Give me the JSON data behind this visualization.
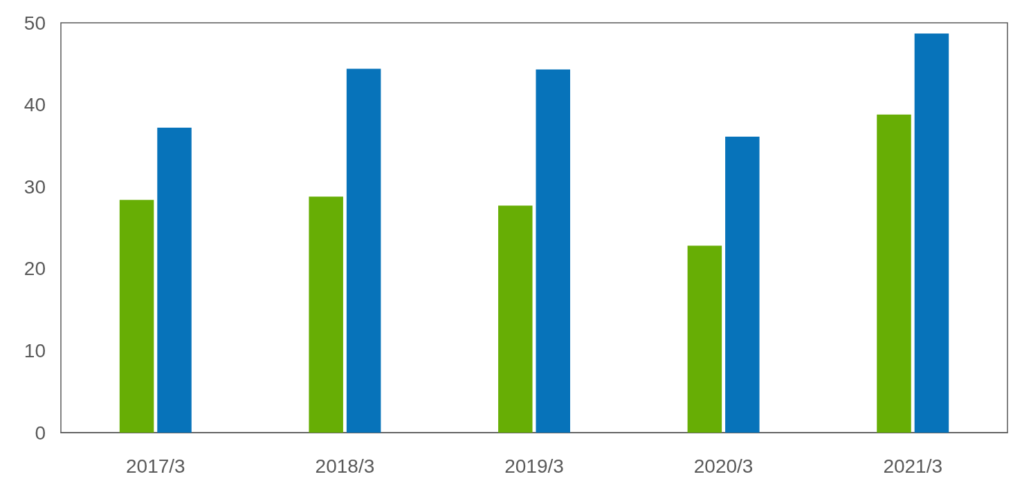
{
  "chart_data": {
    "type": "bar",
    "categories": [
      "2017/3",
      "2018/3",
      "2019/3",
      "2020/3",
      "2021/3"
    ],
    "series": [
      {
        "color": "#67ae05",
        "values": [
          28.4,
          28.8,
          27.7,
          22.8,
          38.8
        ]
      },
      {
        "color": "#0773ba",
        "values": [
          37.2,
          44.4,
          44.3,
          36.1,
          48.7
        ]
      }
    ],
    "ylim": [
      0,
      50
    ],
    "yticks": [
      0,
      10,
      20,
      30,
      40,
      50
    ],
    "grid": false
  }
}
